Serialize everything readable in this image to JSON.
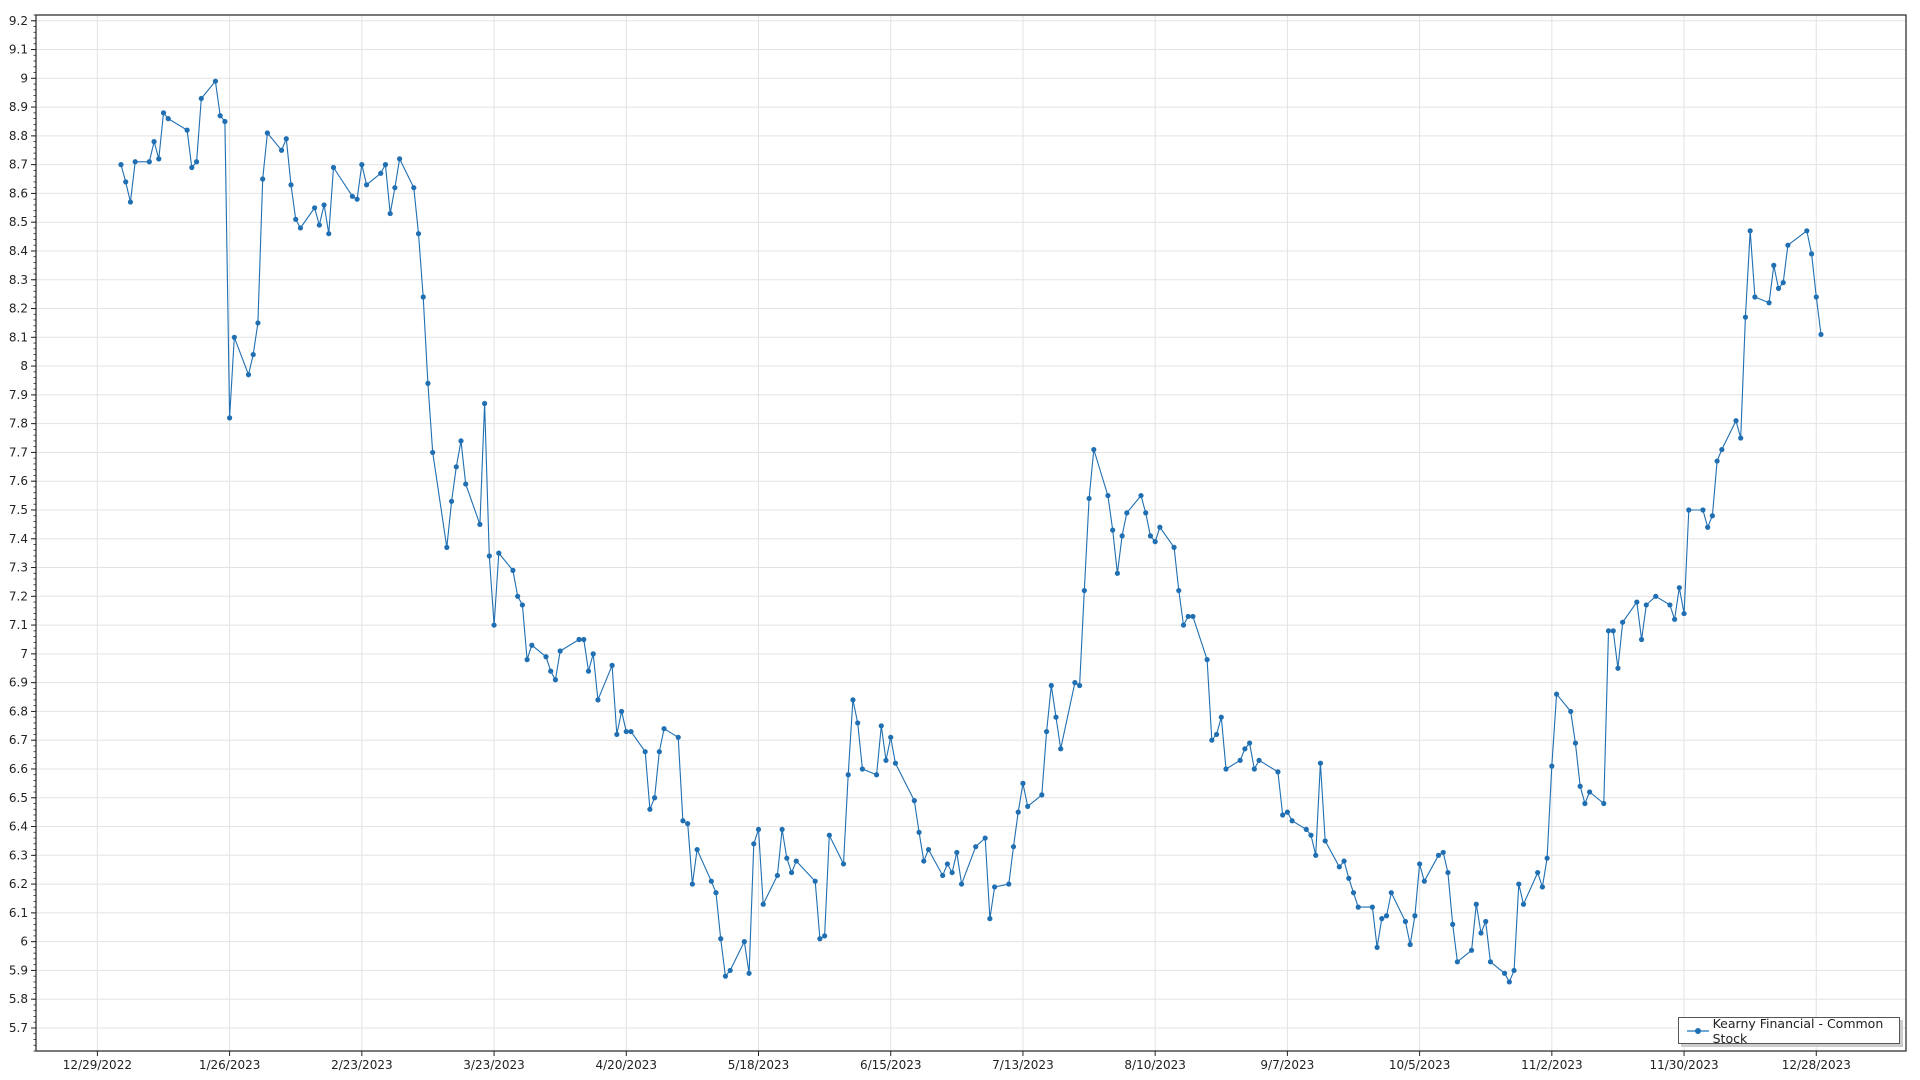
{
  "chart_data": {
    "type": "line",
    "title": "",
    "xlabel": "",
    "ylabel": "",
    "xlim": [
      "12/16/2022",
      "1/16/2024"
    ],
    "ylim": [
      5.62,
      9.22
    ],
    "grid": true,
    "legend_position": "bottom-right",
    "x_ticks": [
      "12/29/2022",
      "1/26/2023",
      "2/23/2023",
      "3/23/2023",
      "4/20/2023",
      "5/18/2023",
      "6/15/2023",
      "7/13/2023",
      "8/10/2023",
      "9/7/2023",
      "10/5/2023",
      "11/2/2023",
      "11/30/2023",
      "12/28/2023"
    ],
    "y_ticks": [
      "5.7",
      "5.8",
      "5.9",
      "6",
      "6.1",
      "6.2",
      "6.3",
      "6.4",
      "6.5",
      "6.6",
      "6.7",
      "6.8",
      "6.9",
      "7",
      "7.1",
      "7.2",
      "7.3",
      "7.4",
      "7.5",
      "7.6",
      "7.7",
      "7.8",
      "7.9",
      "8",
      "8.1",
      "8.2",
      "8.3",
      "8.4",
      "8.5",
      "8.6",
      "8.7",
      "8.8",
      "8.9",
      "9",
      "9.1",
      "9.2"
    ],
    "series": [
      {
        "name": "Kearny Financial - Common Stock",
        "color": "#1f6fb2",
        "x": [
          "1/3/2023",
          "1/4/2023",
          "1/5/2023",
          "1/6/2023",
          "1/9/2023",
          "1/10/2023",
          "1/11/2023",
          "1/12/2023",
          "1/13/2023",
          "1/17/2023",
          "1/18/2023",
          "1/19/2023",
          "1/20/2023",
          "1/23/2023",
          "1/24/2023",
          "1/25/2023",
          "1/26/2023",
          "1/27/2023",
          "1/30/2023",
          "1/31/2023",
          "2/1/2023",
          "2/2/2023",
          "2/3/2023",
          "2/6/2023",
          "2/7/2023",
          "2/8/2023",
          "2/9/2023",
          "2/10/2023",
          "2/13/2023",
          "2/14/2023",
          "2/15/2023",
          "2/16/2023",
          "2/17/2023",
          "2/21/2023",
          "2/22/2023",
          "2/23/2023",
          "2/24/2023",
          "2/27/2023",
          "2/28/2023",
          "3/1/2023",
          "3/2/2023",
          "3/3/2023",
          "3/6/2023",
          "3/7/2023",
          "3/8/2023",
          "3/9/2023",
          "3/10/2023",
          "3/13/2023",
          "3/14/2023",
          "3/15/2023",
          "3/16/2023",
          "3/17/2023",
          "3/20/2023",
          "3/21/2023",
          "3/22/2023",
          "3/23/2023",
          "3/24/2023",
          "3/27/2023",
          "3/28/2023",
          "3/29/2023",
          "3/30/2023",
          "3/31/2023",
          "4/3/2023",
          "4/4/2023",
          "4/5/2023",
          "4/6/2023",
          "4/10/2023",
          "4/11/2023",
          "4/12/2023",
          "4/13/2023",
          "4/14/2023",
          "4/17/2023",
          "4/18/2023",
          "4/19/2023",
          "4/20/2023",
          "4/21/2023",
          "4/24/2023",
          "4/25/2023",
          "4/26/2023",
          "4/27/2023",
          "4/28/2023",
          "5/1/2023",
          "5/2/2023",
          "5/3/2023",
          "5/4/2023",
          "5/5/2023",
          "5/8/2023",
          "5/9/2023",
          "5/10/2023",
          "5/11/2023",
          "5/12/2023",
          "5/15/2023",
          "5/16/2023",
          "5/17/2023",
          "5/18/2023",
          "5/19/2023",
          "5/22/2023",
          "5/23/2023",
          "5/24/2023",
          "5/25/2023",
          "5/26/2023",
          "5/30/2023",
          "5/31/2023",
          "6/1/2023",
          "6/2/2023",
          "6/5/2023",
          "6/6/2023",
          "6/7/2023",
          "6/8/2023",
          "6/9/2023",
          "6/12/2023",
          "6/13/2023",
          "6/14/2023",
          "6/15/2023",
          "6/16/2023",
          "6/20/2023",
          "6/21/2023",
          "6/22/2023",
          "6/23/2023",
          "6/26/2023",
          "6/27/2023",
          "6/28/2023",
          "6/29/2023",
          "6/30/2023",
          "7/3/2023",
          "7/5/2023",
          "7/6/2023",
          "7/7/2023",
          "7/10/2023",
          "7/11/2023",
          "7/12/2023",
          "7/13/2023",
          "7/14/2023",
          "7/17/2023",
          "7/18/2023",
          "7/19/2023",
          "7/20/2023",
          "7/21/2023",
          "7/24/2023",
          "7/25/2023",
          "7/26/2023",
          "7/27/2023",
          "7/28/2023",
          "7/31/2023",
          "8/1/2023",
          "8/2/2023",
          "8/3/2023",
          "8/4/2023",
          "8/7/2023",
          "8/8/2023",
          "8/9/2023",
          "8/10/2023",
          "8/11/2023",
          "8/14/2023",
          "8/15/2023",
          "8/16/2023",
          "8/17/2023",
          "8/18/2023",
          "8/21/2023",
          "8/22/2023",
          "8/23/2023",
          "8/24/2023",
          "8/25/2023",
          "8/28/2023",
          "8/29/2023",
          "8/30/2023",
          "8/31/2023",
          "9/1/2023",
          "9/5/2023",
          "9/6/2023",
          "9/7/2023",
          "9/8/2023",
          "9/11/2023",
          "9/12/2023",
          "9/13/2023",
          "9/14/2023",
          "9/15/2023",
          "9/18/2023",
          "9/19/2023",
          "9/20/2023",
          "9/21/2023",
          "9/22/2023",
          "9/25/2023",
          "9/26/2023",
          "9/27/2023",
          "9/28/2023",
          "9/29/2023",
          "10/2/2023",
          "10/3/2023",
          "10/4/2023",
          "10/5/2023",
          "10/6/2023",
          "10/9/2023",
          "10/10/2023",
          "10/11/2023",
          "10/12/2023",
          "10/13/2023",
          "10/16/2023",
          "10/17/2023",
          "10/18/2023",
          "10/19/2023",
          "10/20/2023",
          "10/23/2023",
          "10/24/2023",
          "10/25/2023",
          "10/26/2023",
          "10/27/2023",
          "10/30/2023",
          "10/31/2023",
          "11/1/2023",
          "11/2/2023",
          "11/3/2023",
          "11/6/2023",
          "11/7/2023",
          "11/8/2023",
          "11/9/2023",
          "11/10/2023",
          "11/13/2023",
          "11/14/2023",
          "11/15/2023",
          "11/16/2023",
          "11/17/2023",
          "11/20/2023",
          "11/21/2023",
          "11/22/2023",
          "11/24/2023",
          "11/27/2023",
          "11/28/2023",
          "11/29/2023",
          "11/30/2023",
          "12/1/2023",
          "12/4/2023",
          "12/5/2023",
          "12/6/2023",
          "12/7/2023",
          "12/8/2023",
          "12/11/2023",
          "12/12/2023",
          "12/13/2023",
          "12/14/2023",
          "12/15/2023",
          "12/18/2023",
          "12/19/2023",
          "12/20/2023",
          "12/21/2023",
          "12/22/2023",
          "12/26/2023",
          "12/27/2023",
          "12/28/2023",
          "12/29/2023"
        ],
        "y": [
          8.7,
          8.64,
          8.57,
          8.71,
          8.71,
          8.78,
          8.72,
          8.88,
          8.86,
          8.82,
          8.69,
          8.71,
          8.93,
          8.99,
          8.87,
          8.85,
          7.82,
          8.1,
          7.97,
          8.04,
          8.15,
          8.65,
          8.81,
          8.75,
          8.79,
          8.63,
          8.51,
          8.48,
          8.55,
          8.49,
          8.56,
          8.46,
          8.69,
          8.59,
          8.58,
          8.7,
          8.63,
          8.67,
          8.7,
          8.53,
          8.62,
          8.72,
          8.62,
          8.46,
          8.24,
          7.94,
          7.7,
          7.37,
          7.53,
          7.65,
          7.74,
          7.59,
          7.45,
          7.87,
          7.34,
          7.1,
          7.35,
          7.29,
          7.2,
          7.17,
          6.98,
          7.03,
          6.99,
          6.94,
          6.91,
          7.01,
          7.05,
          7.05,
          6.94,
          7.0,
          6.84,
          6.96,
          6.72,
          6.8,
          6.73,
          6.73,
          6.66,
          6.46,
          6.5,
          6.66,
          6.74,
          6.71,
          6.42,
          6.41,
          6.2,
          6.32,
          6.21,
          6.17,
          6.01,
          5.88,
          5.9,
          6.0,
          5.89,
          6.34,
          6.39,
          6.13,
          6.23,
          6.39,
          6.29,
          6.24,
          6.28,
          6.21,
          6.01,
          6.02,
          6.37,
          6.27,
          6.58,
          6.84,
          6.76,
          6.6,
          6.58,
          6.75,
          6.63,
          6.71,
          6.62,
          6.49,
          6.38,
          6.28,
          6.32,
          6.23,
          6.27,
          6.24,
          6.31,
          6.2,
          6.33,
          6.36,
          6.08,
          6.19,
          6.2,
          6.33,
          6.45,
          6.55,
          6.47,
          6.51,
          6.73,
          6.89,
          6.78,
          6.67,
          6.9,
          6.89,
          7.22,
          7.54,
          7.71,
          7.55,
          7.43,
          7.28,
          7.41,
          7.49,
          7.55,
          7.49,
          7.41,
          7.39,
          7.44,
          7.37,
          7.22,
          7.1,
          7.13,
          7.13,
          6.98,
          6.7,
          6.72,
          6.78,
          6.6,
          6.63,
          6.67,
          6.69,
          6.6,
          6.63,
          6.59,
          6.44,
          6.45,
          6.42,
          6.39,
          6.37,
          6.3,
          6.62,
          6.35,
          6.26,
          6.28,
          6.22,
          6.17,
          6.12,
          6.12,
          5.98,
          6.08,
          6.09,
          6.17,
          6.07,
          5.99,
          6.09,
          6.27,
          6.21,
          6.3,
          6.31,
          6.24,
          6.06,
          5.93,
          5.97,
          6.13,
          6.03,
          6.07,
          5.93,
          5.89,
          5.86,
          5.9,
          6.2,
          6.13,
          6.24,
          6.19,
          6.29,
          6.61,
          6.86,
          6.8,
          6.69,
          6.54,
          6.48,
          6.52,
          6.48,
          7.08,
          7.08,
          6.95,
          7.11,
          7.18,
          7.05,
          7.17,
          7.2,
          7.17,
          7.12,
          7.23,
          7.14,
          7.5,
          7.5,
          7.44,
          7.48,
          7.67,
          7.71,
          7.81,
          7.75,
          8.17,
          8.47,
          8.24,
          8.22,
          8.35,
          8.27,
          8.29,
          8.42,
          8.47,
          8.39,
          8.24,
          8.11
        ]
      }
    ]
  },
  "legend": {
    "label": "Kearny Financial - Common Stock"
  }
}
